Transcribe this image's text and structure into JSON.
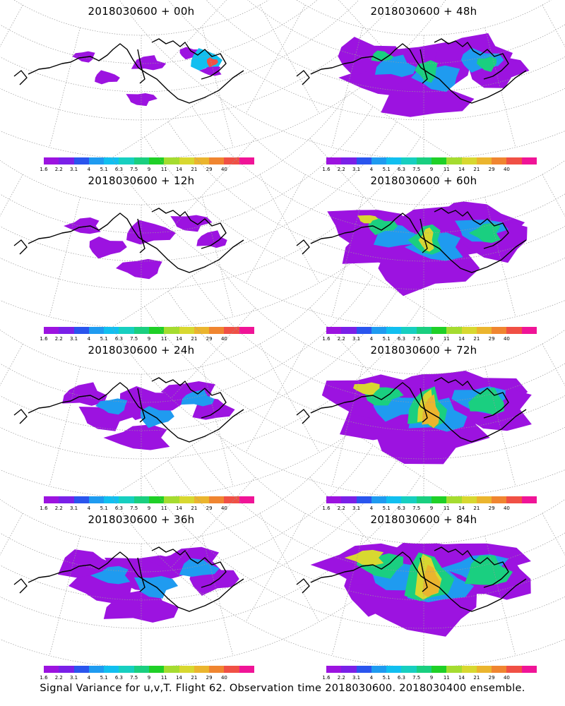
{
  "caption": "Signal Variance for u,v,T. Flight 62. Observation time 2018030600. 2018030400 ensemble.",
  "colorbar": {
    "labels": [
      "1.6",
      "2.2",
      "3.1",
      "4",
      "5.1",
      "6.3",
      "7.5",
      "9",
      "11",
      "14",
      "21",
      "29",
      "40"
    ],
    "colors": [
      "#9c13e0",
      "#7a20e8",
      "#2a55ee",
      "#1f9bf0",
      "#11bff0",
      "#17cfc0",
      "#1acf80",
      "#1fd027",
      "#a5dc30",
      "#d8d830",
      "#ebb52e",
      "#f08530",
      "#f05045",
      "#f01497"
    ]
  },
  "panels": [
    {
      "title": "2018030600 + 00h",
      "intensity": 0
    },
    {
      "title": "2018030600 + 12h",
      "intensity": 1
    },
    {
      "title": "2018030600 + 24h",
      "intensity": 2
    },
    {
      "title": "2018030600 + 36h",
      "intensity": 3
    },
    {
      "title": "2018030600 + 48h",
      "intensity": 4
    },
    {
      "title": "2018030600 + 60h",
      "intensity": 5
    },
    {
      "title": "2018030600 + 72h",
      "intensity": 6
    },
    {
      "title": "2018030600 + 84h",
      "intensity": 7
    }
  ]
}
